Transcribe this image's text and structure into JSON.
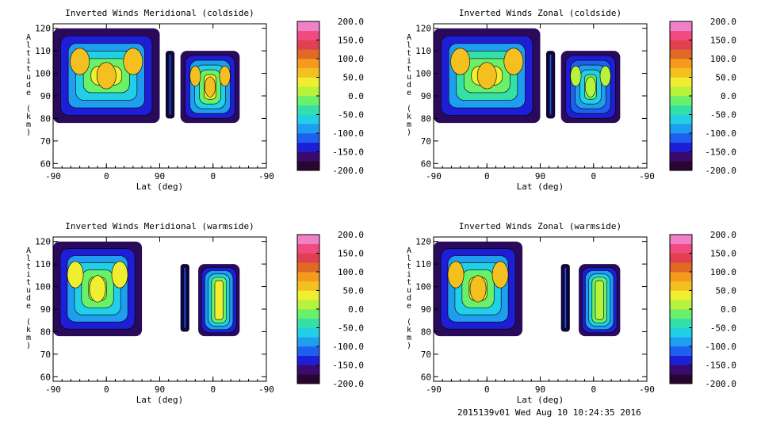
{
  "footer": "2015139v01 Wed Aug 10 10:24:35 2016",
  "colorbar": {
    "ticks": [
      "200.0",
      "150.0",
      "100.0",
      "50.0",
      "0.0",
      "-50.0",
      "-100.0",
      "-150.0",
      "-200.0"
    ],
    "range": [
      -200,
      200
    ],
    "step": 25,
    "colors": [
      "#2a0530",
      "#3a0a6e",
      "#1e1ed6",
      "#1f5ff0",
      "#1f9ef0",
      "#21cfe6",
      "#35e0a8",
      "#6af06a",
      "#b7f23c",
      "#f0ee30",
      "#f4c020",
      "#f59a1e",
      "#e06a24",
      "#e04050",
      "#f04a80",
      "#f080c8"
    ]
  },
  "chart_data": [
    {
      "type": "heatmap",
      "title": "Inverted Winds Meridional (coldside)",
      "xlabel": "Lat (deg)",
      "ylabel": "Altitude (km)",
      "x_ticks": [
        "-90",
        "0",
        "90",
        "0",
        "-90"
      ],
      "y_ticks": [
        "120",
        "110",
        "100",
        "90",
        "80",
        "70",
        "60"
      ],
      "ylim": [
        58,
        122
      ],
      "colorbar_label_range": [
        -200,
        200
      ],
      "data_regions": [
        {
          "x_range": [
            -90,
            90
          ],
          "alt_range": [
            78,
            120
          ],
          "typical_value": 25
        },
        {
          "x_range": [
            100,
            115
          ],
          "alt_range": [
            80,
            110
          ],
          "typical_value": -125
        },
        {
          "x_range": [
            125,
            225
          ],
          "alt_range": [
            78,
            110
          ],
          "typical_value": 25
        }
      ]
    },
    {
      "type": "heatmap",
      "title": "Inverted Winds Zonal (coldside)",
      "xlabel": "Lat (deg)",
      "ylabel": "Altitude (km)",
      "x_ticks": [
        "-90",
        "0",
        "90",
        "0",
        "-90"
      ],
      "y_ticks": [
        "120",
        "110",
        "100",
        "90",
        "80",
        "70",
        "60"
      ],
      "ylim": [
        58,
        122
      ],
      "colorbar_label_range": [
        -200,
        200
      ],
      "data_regions": [
        {
          "x_range": [
            -90,
            90
          ],
          "alt_range": [
            78,
            120
          ],
          "typical_value": 40
        },
        {
          "x_range": [
            100,
            115
          ],
          "alt_range": [
            80,
            110
          ],
          "typical_value": -125
        },
        {
          "x_range": [
            125,
            225
          ],
          "alt_range": [
            78,
            110
          ],
          "typical_value": -20
        }
      ]
    },
    {
      "type": "heatmap",
      "title": "Inverted Winds Meridional (warmside)",
      "xlabel": "Lat (deg)",
      "ylabel": "Altitude (km)",
      "x_ticks": [
        "-90",
        "0",
        "90",
        "0",
        "-90"
      ],
      "y_ticks": [
        "120",
        "110",
        "100",
        "90",
        "80",
        "70",
        "60"
      ],
      "ylim": [
        58,
        122
      ],
      "colorbar_label_range": [
        -200,
        200
      ],
      "data_regions": [
        {
          "x_range": [
            -90,
            60
          ],
          "alt_range": [
            78,
            120
          ],
          "typical_value": 20
        },
        {
          "x_range": [
            125,
            140
          ],
          "alt_range": [
            80,
            110
          ],
          "typical_value": -125
        },
        {
          "x_range": [
            155,
            225
          ],
          "alt_range": [
            78,
            110
          ],
          "typical_value": 25
        }
      ]
    },
    {
      "type": "heatmap",
      "title": "Inverted Winds Zonal (warmside)",
      "xlabel": "Lat (deg)",
      "ylabel": "Altitude (km)",
      "x_ticks": [
        "-90",
        "0",
        "90",
        "0",
        "-90"
      ],
      "y_ticks": [
        "120",
        "110",
        "100",
        "90",
        "80",
        "70",
        "60"
      ],
      "ylim": [
        58,
        122
      ],
      "colorbar_label_range": [
        -200,
        200
      ],
      "data_regions": [
        {
          "x_range": [
            -90,
            60
          ],
          "alt_range": [
            78,
            120
          ],
          "typical_value": 30
        },
        {
          "x_range": [
            125,
            140
          ],
          "alt_range": [
            80,
            110
          ],
          "typical_value": -125
        },
        {
          "x_range": [
            155,
            225
          ],
          "alt_range": [
            78,
            110
          ],
          "typical_value": 20
        }
      ]
    }
  ]
}
